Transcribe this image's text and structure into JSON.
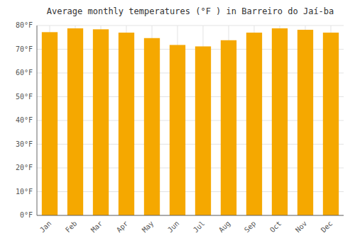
{
  "chart_data": {
    "type": "bar",
    "title": "Average monthly temperatures (°F ) in Barreiro do Jaí-ba",
    "categories": [
      "Jan",
      "Feb",
      "Mar",
      "Apr",
      "May",
      "Jun",
      "Jul",
      "Aug",
      "Sep",
      "Oct",
      "Nov",
      "Dec"
    ],
    "values": [
      77.2,
      78.8,
      78.4,
      77.0,
      74.7,
      71.8,
      71.2,
      73.8,
      77.0,
      78.8,
      78.2,
      77.0
    ],
    "color": "#F5A800",
    "ylim": [
      0,
      80
    ],
    "yticks": [
      {
        "value": 0,
        "label": "0°F"
      },
      {
        "value": 10,
        "label": "10°F"
      },
      {
        "value": 20,
        "label": "20°F"
      },
      {
        "value": 30,
        "label": "30°F"
      },
      {
        "value": 40,
        "label": "40°F"
      },
      {
        "value": 50,
        "label": "50°F"
      },
      {
        "value": 60,
        "label": "60°F"
      },
      {
        "value": 70,
        "label": "70°F"
      },
      {
        "value": 80,
        "label": "80°F"
      }
    ],
    "grid": true
  }
}
